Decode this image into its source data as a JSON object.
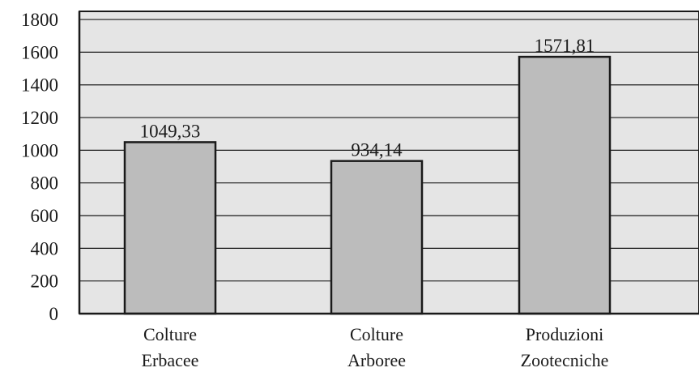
{
  "chart_data": {
    "type": "bar",
    "categories": [
      [
        "Colture",
        "Erbacee"
      ],
      [
        "Colture",
        "Arboree"
      ],
      [
        "Produzioni",
        "Zootecniche"
      ]
    ],
    "values": [
      1049.33,
      934.14,
      1571.81
    ],
    "value_labels": [
      "1049,33",
      "934,14",
      "1571,81"
    ],
    "y_ticks": [
      0,
      200,
      400,
      600,
      800,
      1000,
      1200,
      1400,
      1600,
      1800
    ],
    "ylim": [
      0,
      1850
    ],
    "title": "",
    "xlabel": "",
    "ylabel": "",
    "grid": true,
    "colors": {
      "plot_background": "#e5e5e5",
      "bar_fill": "#bcbcbc",
      "bar_stroke": "#1a1a1a",
      "gridline": "#1a1a1a",
      "axis": "#1a1a1a"
    }
  }
}
